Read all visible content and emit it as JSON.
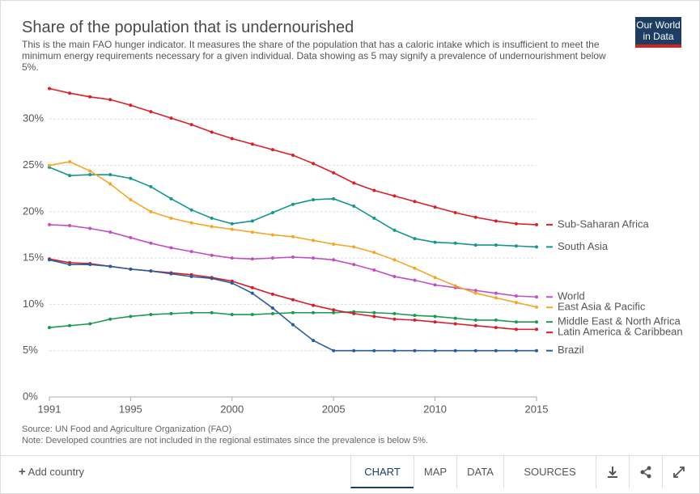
{
  "header": {
    "title": "Share of the population that is undernourished",
    "subtitle": "This is the main FAO hunger indicator. It measures the share of the population that has a caloric intake which is insufficient to meet the minimum energy requirements necessary for a given individual. Data showing as 5 may signify a prevalence of undernourishment below 5%.",
    "logo": [
      "Our World",
      "in Data"
    ]
  },
  "chart_data": {
    "type": "line",
    "x": [
      1991,
      1992,
      1993,
      1994,
      1995,
      1996,
      1997,
      1998,
      1999,
      2000,
      2001,
      2002,
      2003,
      2004,
      2005,
      2006,
      2007,
      2008,
      2009,
      2010,
      2011,
      2012,
      2013,
      2014,
      2015
    ],
    "xlim": [
      1991,
      2015
    ],
    "xticks": [
      1991,
      1995,
      2000,
      2005,
      2010,
      2015
    ],
    "ylim": [
      0,
      35
    ],
    "yticks": [
      {
        "value": 0,
        "label": "0%"
      },
      {
        "value": 5,
        "label": "5%"
      },
      {
        "value": 10,
        "label": "10%"
      },
      {
        "value": 15,
        "label": "15%"
      },
      {
        "value": 20,
        "label": "20%"
      },
      {
        "value": 25,
        "label": "25%"
      },
      {
        "value": 30,
        "label": "30%"
      }
    ],
    "grid": true,
    "series": [
      {
        "name": "Sub-Saharan Africa",
        "color": "#dc1f26",
        "values": [
          33.3,
          32.8,
          32.4,
          32.1,
          31.5,
          30.8,
          30.1,
          29.4,
          28.6,
          27.9,
          27.3,
          26.7,
          26.1,
          25.2,
          24.2,
          23.1,
          22.3,
          21.7,
          21.1,
          20.5,
          19.9,
          19.4,
          19.0,
          18.7,
          18.6
        ]
      },
      {
        "name": "South Asia",
        "color": "#15968f",
        "values": [
          24.8,
          23.9,
          24.0,
          24.0,
          23.6,
          22.7,
          21.4,
          20.2,
          19.3,
          18.7,
          19.0,
          19.9,
          20.8,
          21.3,
          21.4,
          20.6,
          19.3,
          18.0,
          17.1,
          16.7,
          16.6,
          16.4,
          16.4,
          16.3,
          16.2
        ]
      },
      {
        "name": "World",
        "color": "#c34fbf",
        "values": [
          18.6,
          18.5,
          18.2,
          17.8,
          17.2,
          16.6,
          16.1,
          15.7,
          15.3,
          15.0,
          14.9,
          15.0,
          15.1,
          15.0,
          14.8,
          14.3,
          13.7,
          13.0,
          12.6,
          12.1,
          11.8,
          11.5,
          11.2,
          10.9,
          10.8
        ]
      },
      {
        "name": "East Asia & Pacific",
        "color": "#f5a623",
        "values": [
          25.0,
          25.4,
          24.4,
          23.0,
          21.3,
          20.0,
          19.3,
          18.8,
          18.4,
          18.1,
          17.8,
          17.5,
          17.3,
          16.9,
          16.5,
          16.2,
          15.6,
          14.8,
          13.9,
          12.9,
          12.0,
          11.2,
          10.7,
          10.2,
          9.7
        ]
      },
      {
        "name": "Middle East & North Africa",
        "color": "#1a9a4e",
        "values": [
          7.5,
          7.7,
          7.9,
          8.4,
          8.7,
          8.9,
          9.0,
          9.1,
          9.1,
          8.9,
          8.9,
          9.0,
          9.1,
          9.1,
          9.1,
          9.2,
          9.1,
          9.0,
          8.8,
          8.7,
          8.5,
          8.3,
          8.3,
          8.1,
          8.1
        ]
      },
      {
        "name": "Latin America & Caribbean",
        "color": "#d81e2a",
        "values": [
          14.9,
          14.5,
          14.4,
          14.1,
          13.8,
          13.6,
          13.4,
          13.2,
          12.9,
          12.5,
          11.8,
          11.1,
          10.5,
          9.9,
          9.4,
          9.0,
          8.7,
          8.4,
          8.3,
          8.1,
          7.9,
          7.7,
          7.5,
          7.3,
          7.3
        ]
      },
      {
        "name": "Brazil",
        "color": "#2b5d9e",
        "values": [
          14.8,
          14.3,
          14.3,
          14.1,
          13.8,
          13.6,
          13.3,
          13.0,
          12.8,
          12.3,
          11.2,
          9.6,
          7.8,
          6.1,
          5.0,
          5.0,
          5.0,
          5.0,
          5.0,
          5.0,
          5.0,
          5.0,
          5.0,
          5.0,
          5.0
        ]
      }
    ]
  },
  "footer": {
    "source": "Source: UN Food and Agriculture Organization (FAO)",
    "note": "Note: Developed countries are not included in the regional estimates since the prevalence is below 5%."
  },
  "controls": {
    "add_country": "Add country",
    "tabs": [
      "CHART",
      "MAP",
      "DATA",
      "SOURCES"
    ]
  }
}
